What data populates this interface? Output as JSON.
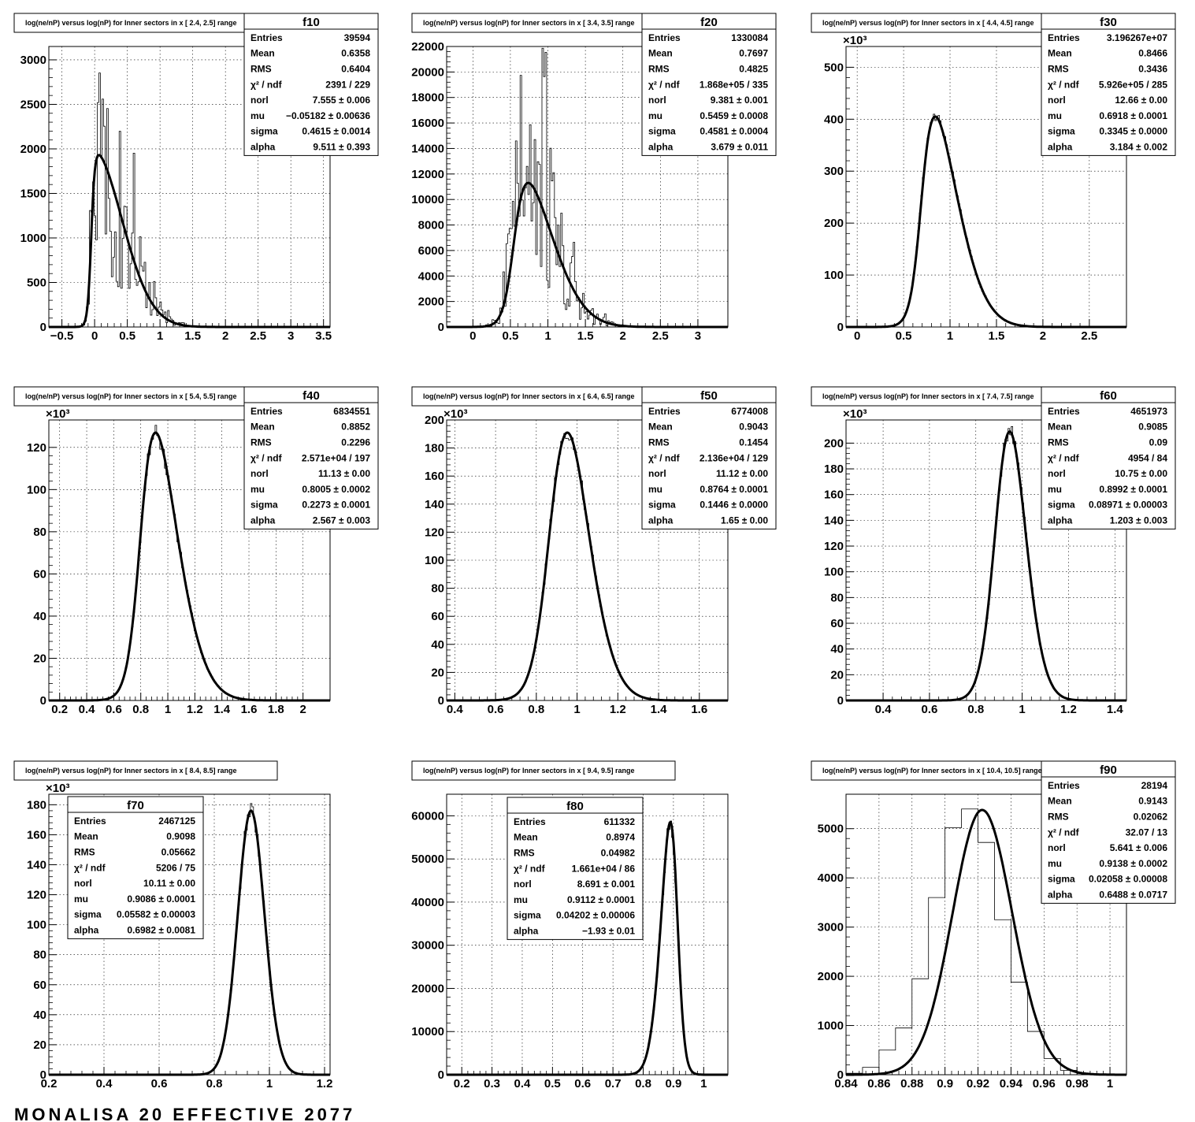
{
  "footer": "MONALISA 20 EFFECTIVE 2077",
  "chart_data": [
    {
      "type": "bar",
      "id": "f10",
      "title": "log(ne/nP) versus log(nP) for Inner sectors in x [  2.4,  2.5] range",
      "xlim": [
        -0.7,
        3.6
      ],
      "ylim": [
        0,
        3150
      ],
      "xticks": [
        -0.5,
        0,
        0.5,
        1,
        1.5,
        2,
        2.5,
        3,
        3.5
      ],
      "yticks": [
        0,
        500,
        1000,
        1500,
        2000,
        2500,
        3000
      ],
      "multiplier": "",
      "grid": true,
      "spiky": true,
      "fit": {
        "norl": 7.555,
        "mu": -0.05182,
        "sigma": 0.4615,
        "alpha": 9.511,
        "peak": 1930
      },
      "stats": {
        "position": "top-right",
        "name": "f10",
        "rows": [
          [
            "Entries",
            "39594"
          ],
          [
            "Mean",
            "0.6358"
          ],
          [
            "RMS",
            "0.6404"
          ],
          [
            "χ² / ndf",
            "2391 / 229"
          ],
          [
            "norl",
            "7.555 ± 0.006"
          ],
          [
            "mu",
            "−0.05182 ± 0.00636"
          ],
          [
            "sigma",
            "0.4615 ± 0.0014"
          ],
          [
            "alpha",
            "9.511 ± 0.393"
          ]
        ]
      }
    },
    {
      "type": "bar",
      "id": "f20",
      "title": "log(ne/nP) versus log(nP) for Inner sectors in x [  3.4,  3.5] range",
      "xlim": [
        -0.35,
        3.4
      ],
      "ylim": [
        0,
        22000
      ],
      "xticks": [
        0,
        0.5,
        1,
        1.5,
        2,
        2.5,
        3
      ],
      "yticks": [
        0,
        2000,
        4000,
        6000,
        8000,
        10000,
        12000,
        14000,
        16000,
        18000,
        20000,
        22000
      ],
      "multiplier": "",
      "grid": true,
      "spiky": true,
      "fit": {
        "norl": 9.381,
        "mu": 0.5459,
        "sigma": 0.4581,
        "alpha": 3.679,
        "peak": 11300
      },
      "stats": {
        "position": "top-right",
        "name": "f20",
        "rows": [
          [
            "Entries",
            "1330084"
          ],
          [
            "Mean",
            "0.7697"
          ],
          [
            "RMS",
            "0.4825"
          ],
          [
            "χ² / ndf",
            "1.868e+05 / 335"
          ],
          [
            "norl",
            "9.381 ± 0.001"
          ],
          [
            "mu",
            "0.5459 ± 0.0008"
          ],
          [
            "sigma",
            "0.4581 ± 0.0004"
          ],
          [
            "alpha",
            "3.679 ± 0.011"
          ]
        ]
      }
    },
    {
      "type": "bar",
      "id": "f30",
      "title": "log(ne/nP) versus log(nP) for Inner sectors in x [  4.4,  4.5] range",
      "xlim": [
        -0.12,
        2.9
      ],
      "ylim": [
        0,
        540
      ],
      "xticks": [
        0,
        0.5,
        1,
        1.5,
        2,
        2.5
      ],
      "yticks": [
        0,
        100,
        200,
        300,
        400,
        500
      ],
      "multiplier": "×10³",
      "grid": true,
      "spiky": false,
      "fit": {
        "norl": 12.66,
        "mu": 0.6918,
        "sigma": 0.3345,
        "alpha": 3.184,
        "peak": 405
      },
      "stats": {
        "position": "top-right",
        "name": "f30",
        "rows": [
          [
            "Entries",
            "3.196267e+07"
          ],
          [
            "Mean",
            "0.8466"
          ],
          [
            "RMS",
            "0.3436"
          ],
          [
            "χ² / ndf",
            "5.926e+05 / 285"
          ],
          [
            "norl",
            "12.66 ± 0.00"
          ],
          [
            "mu",
            "0.6918 ± 0.0001"
          ],
          [
            "sigma",
            "0.3345 ± 0.0000"
          ],
          [
            "alpha",
            "3.184 ± 0.002"
          ]
        ]
      }
    },
    {
      "type": "bar",
      "id": "f40",
      "title": "log(ne/nP) versus log(nP) for Inner sectors in x [  5.4,  5.5] range",
      "xlim": [
        0.12,
        2.2
      ],
      "ylim": [
        0,
        133
      ],
      "xticks": [
        0.2,
        0.4,
        0.6,
        0.8,
        1,
        1.2,
        1.4,
        1.6,
        1.8,
        2
      ],
      "yticks": [
        0,
        20,
        40,
        60,
        80,
        100,
        120
      ],
      "multiplier": "×10³",
      "grid": true,
      "spiky": false,
      "fit": {
        "norl": 11.13,
        "mu": 0.8005,
        "sigma": 0.2273,
        "alpha": 2.567,
        "peak": 127
      },
      "stats": {
        "position": "top-right",
        "name": "f40",
        "rows": [
          [
            "Entries",
            "6834551"
          ],
          [
            "Mean",
            "0.8852"
          ],
          [
            "RMS",
            "0.2296"
          ],
          [
            "χ² / ndf",
            "2.571e+04 / 197"
          ],
          [
            "norl",
            "11.13 ± 0.00"
          ],
          [
            "mu",
            "0.8005 ± 0.0002"
          ],
          [
            "sigma",
            "0.2273 ± 0.0001"
          ],
          [
            "alpha",
            "2.567 ± 0.003"
          ]
        ]
      }
    },
    {
      "type": "bar",
      "id": "f50",
      "title": "log(ne/nP) versus log(nP) for Inner sectors in x [  6.4,  6.5] range",
      "xlim": [
        0.36,
        1.74
      ],
      "ylim": [
        0,
        200
      ],
      "xticks": [
        0.4,
        0.6,
        0.8,
        1,
        1.2,
        1.4,
        1.6
      ],
      "yticks": [
        0,
        20,
        40,
        60,
        80,
        100,
        120,
        140,
        160,
        180,
        200
      ],
      "multiplier": "×10³",
      "grid": true,
      "spiky": false,
      "fit": {
        "norl": 11.12,
        "mu": 0.8764,
        "sigma": 0.1446,
        "alpha": 1.65,
        "peak": 191
      },
      "stats": {
        "position": "top-right",
        "name": "f50",
        "rows": [
          [
            "Entries",
            "6774008"
          ],
          [
            "Mean",
            "0.9043"
          ],
          [
            "RMS",
            "0.1454"
          ],
          [
            "χ² / ndf",
            "2.136e+04 / 129"
          ],
          [
            "norl",
            "11.12 ± 0.00"
          ],
          [
            "mu",
            "0.8764 ± 0.0001"
          ],
          [
            "sigma",
            "0.1446 ± 0.0000"
          ],
          [
            "alpha",
            "1.65 ± 0.00"
          ]
        ]
      }
    },
    {
      "type": "bar",
      "id": "f60",
      "title": "log(ne/nP) versus log(nP) for Inner sectors in x [  7.4,  7.5] range",
      "xlim": [
        0.24,
        1.45
      ],
      "ylim": [
        0,
        218
      ],
      "xticks": [
        0.4,
        0.6,
        0.8,
        1,
        1.2,
        1.4
      ],
      "yticks": [
        0,
        20,
        40,
        60,
        80,
        100,
        120,
        140,
        160,
        180,
        200
      ],
      "multiplier": "×10³",
      "grid": true,
      "spiky": false,
      "fit": {
        "norl": 10.75,
        "mu": 0.8992,
        "sigma": 0.08971,
        "alpha": 1.203,
        "peak": 209
      },
      "stats": {
        "position": "top-right",
        "name": "f60",
        "rows": [
          [
            "Entries",
            "4651973"
          ],
          [
            "Mean",
            "0.9085"
          ],
          [
            "RMS",
            "0.09"
          ],
          [
            "χ² / ndf",
            "4954 / 84"
          ],
          [
            "norl",
            "10.75 ± 0.00"
          ],
          [
            "mu",
            "0.8992 ± 0.0001"
          ],
          [
            "sigma",
            "0.08971 ± 0.00003"
          ],
          [
            "alpha",
            "1.203 ± 0.003"
          ]
        ]
      }
    },
    {
      "type": "bar",
      "id": "f70",
      "title": "log(ne/nP) versus log(nP) for Inner sectors in x [  8.4,  8.5] range",
      "xlim": [
        0.2,
        1.22
      ],
      "ylim": [
        0,
        187
      ],
      "xticks": [
        0.2,
        0.4,
        0.6,
        0.8,
        1,
        1.2
      ],
      "yticks": [
        0,
        20,
        40,
        60,
        80,
        100,
        120,
        140,
        160,
        180
      ],
      "multiplier": "×10³",
      "grid": true,
      "spiky": false,
      "fit": {
        "norl": 10.11,
        "mu": 0.9086,
        "sigma": 0.05582,
        "alpha": 0.6982,
        "peak": 176
      },
      "stats": {
        "position": "inner-left",
        "name": "f70",
        "rows": [
          [
            "Entries",
            "2467125"
          ],
          [
            "Mean",
            "0.9098"
          ],
          [
            "RMS",
            "0.05662"
          ],
          [
            "χ² / ndf",
            "5206 / 75"
          ],
          [
            "norl",
            "10.11 ± 0.00"
          ],
          [
            "mu",
            "0.9086 ± 0.0001"
          ],
          [
            "sigma",
            "0.05582 ± 0.00003"
          ],
          [
            "alpha",
            "0.6982 ± 0.0081"
          ]
        ]
      }
    },
    {
      "type": "bar",
      "id": "f80",
      "title": "log(ne/nP) versus log(nP) for Inner sectors in x [  9.4,  9.5] range",
      "xlim": [
        0.15,
        1.08
      ],
      "ylim": [
        0,
        65000
      ],
      "xticks": [
        0.2,
        0.3,
        0.4,
        0.5,
        0.6,
        0.7,
        0.8,
        0.9,
        1
      ],
      "yticks": [
        0,
        10000,
        20000,
        30000,
        40000,
        50000,
        60000
      ],
      "multiplier": "",
      "grid": true,
      "spiky": false,
      "fit": {
        "norl": 8.691,
        "mu": 0.9112,
        "sigma": 0.04202,
        "alpha": -1.93,
        "peak": 58500
      },
      "stats": {
        "position": "inner-center",
        "name": "f80",
        "rows": [
          [
            "Entries",
            "611332"
          ],
          [
            "Mean",
            "0.8974"
          ],
          [
            "RMS",
            "0.04982"
          ],
          [
            "χ² / ndf",
            "1.661e+04 / 86"
          ],
          [
            "norl",
            "8.691 ± 0.001"
          ],
          [
            "mu",
            "0.9112 ± 0.0001"
          ],
          [
            "sigma",
            "0.04202 ± 0.00006"
          ],
          [
            "alpha",
            "−1.93 ± 0.01"
          ]
        ]
      }
    },
    {
      "type": "bar",
      "id": "f90",
      "title": "log(ne/nP) versus log(nP) for Inner sectors in x [ 10.4, 10.5] range",
      "xlim": [
        0.84,
        1.01
      ],
      "ylim": [
        0,
        5700
      ],
      "xticks": [
        0.84,
        0.86,
        0.88,
        0.9,
        0.92,
        0.94,
        0.96,
        0.98,
        1
      ],
      "yticks": [
        0,
        1000,
        2000,
        3000,
        4000,
        5000
      ],
      "multiplier": "",
      "grid": true,
      "spiky": false,
      "fit": {
        "norl": 5.641,
        "mu": 0.9138,
        "sigma": 0.02058,
        "alpha": 0.6488,
        "peak": 5380
      },
      "bins": {
        "start": 0.84,
        "width": 0.01,
        "values": [
          30,
          150,
          500,
          950,
          1950,
          3600,
          5020,
          5400,
          4720,
          3150,
          1880,
          880,
          330,
          90,
          25,
          10,
          5
        ]
      },
      "stats": {
        "position": "top-right",
        "name": "f90",
        "rows": [
          [
            "Entries",
            "28194"
          ],
          [
            "Mean",
            "0.9143"
          ],
          [
            "RMS",
            "0.02062"
          ],
          [
            "χ² / ndf",
            "32.07 / 13"
          ],
          [
            "norl",
            "5.641 ± 0.006"
          ],
          [
            "mu",
            "0.9138 ± 0.0002"
          ],
          [
            "sigma",
            "0.02058 ± 0.00008"
          ],
          [
            "alpha",
            "0.6488 ± 0.0717"
          ]
        ]
      }
    }
  ]
}
